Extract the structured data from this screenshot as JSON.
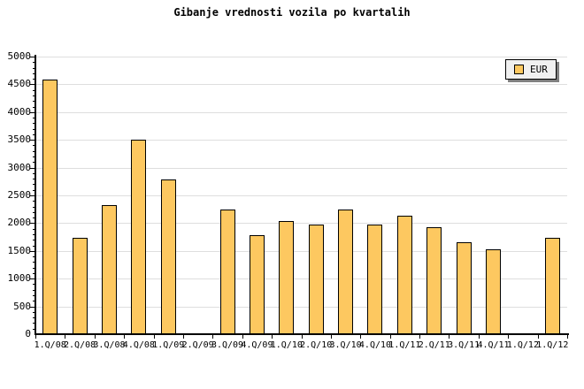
{
  "title": "Gibanje vrednosti vozila po kvartalih",
  "legend": {
    "label": "EUR",
    "swatch_color": "#fdc860"
  },
  "chart_data": {
    "type": "bar",
    "title": "Gibanje vrednosti vozila po kvartalih",
    "series_name": "EUR",
    "categories": [
      "1.Q/08",
      "2.Q/08",
      "3.Q/08",
      "4.Q/08",
      "1.Q/09",
      "2.Q/09",
      "3.Q/09",
      "4.Q/09",
      "1.Q/10",
      "2.Q/10",
      "3.Q/10",
      "4.Q/10",
      "1.Q/11",
      "2.Q/11",
      "3.Q/11",
      "4.Q/11",
      "1.Q/12",
      "1.Q/12"
    ],
    "values": [
      4580,
      1730,
      2330,
      3500,
      2780,
      0,
      2250,
      1790,
      2040,
      1980,
      2250,
      1980,
      2140,
      1930,
      1660,
      1530,
      0,
      1730
    ],
    "xlabel": "",
    "ylabel": "",
    "ylim": [
      0,
      5000
    ],
    "ytick_major_step": 500,
    "ytick_minor_step": 100,
    "yticks": [
      0,
      500,
      1000,
      1500,
      2000,
      2500,
      3000,
      3500,
      4000,
      4500,
      5000
    ],
    "grid": "horizontal-major",
    "legend_position": "top-right",
    "bar_color": "#fdc860",
    "bar_border_color": "#000000",
    "grid_color": "#dedede",
    "axis_color": "#000000",
    "background_color": "#ffffff"
  }
}
